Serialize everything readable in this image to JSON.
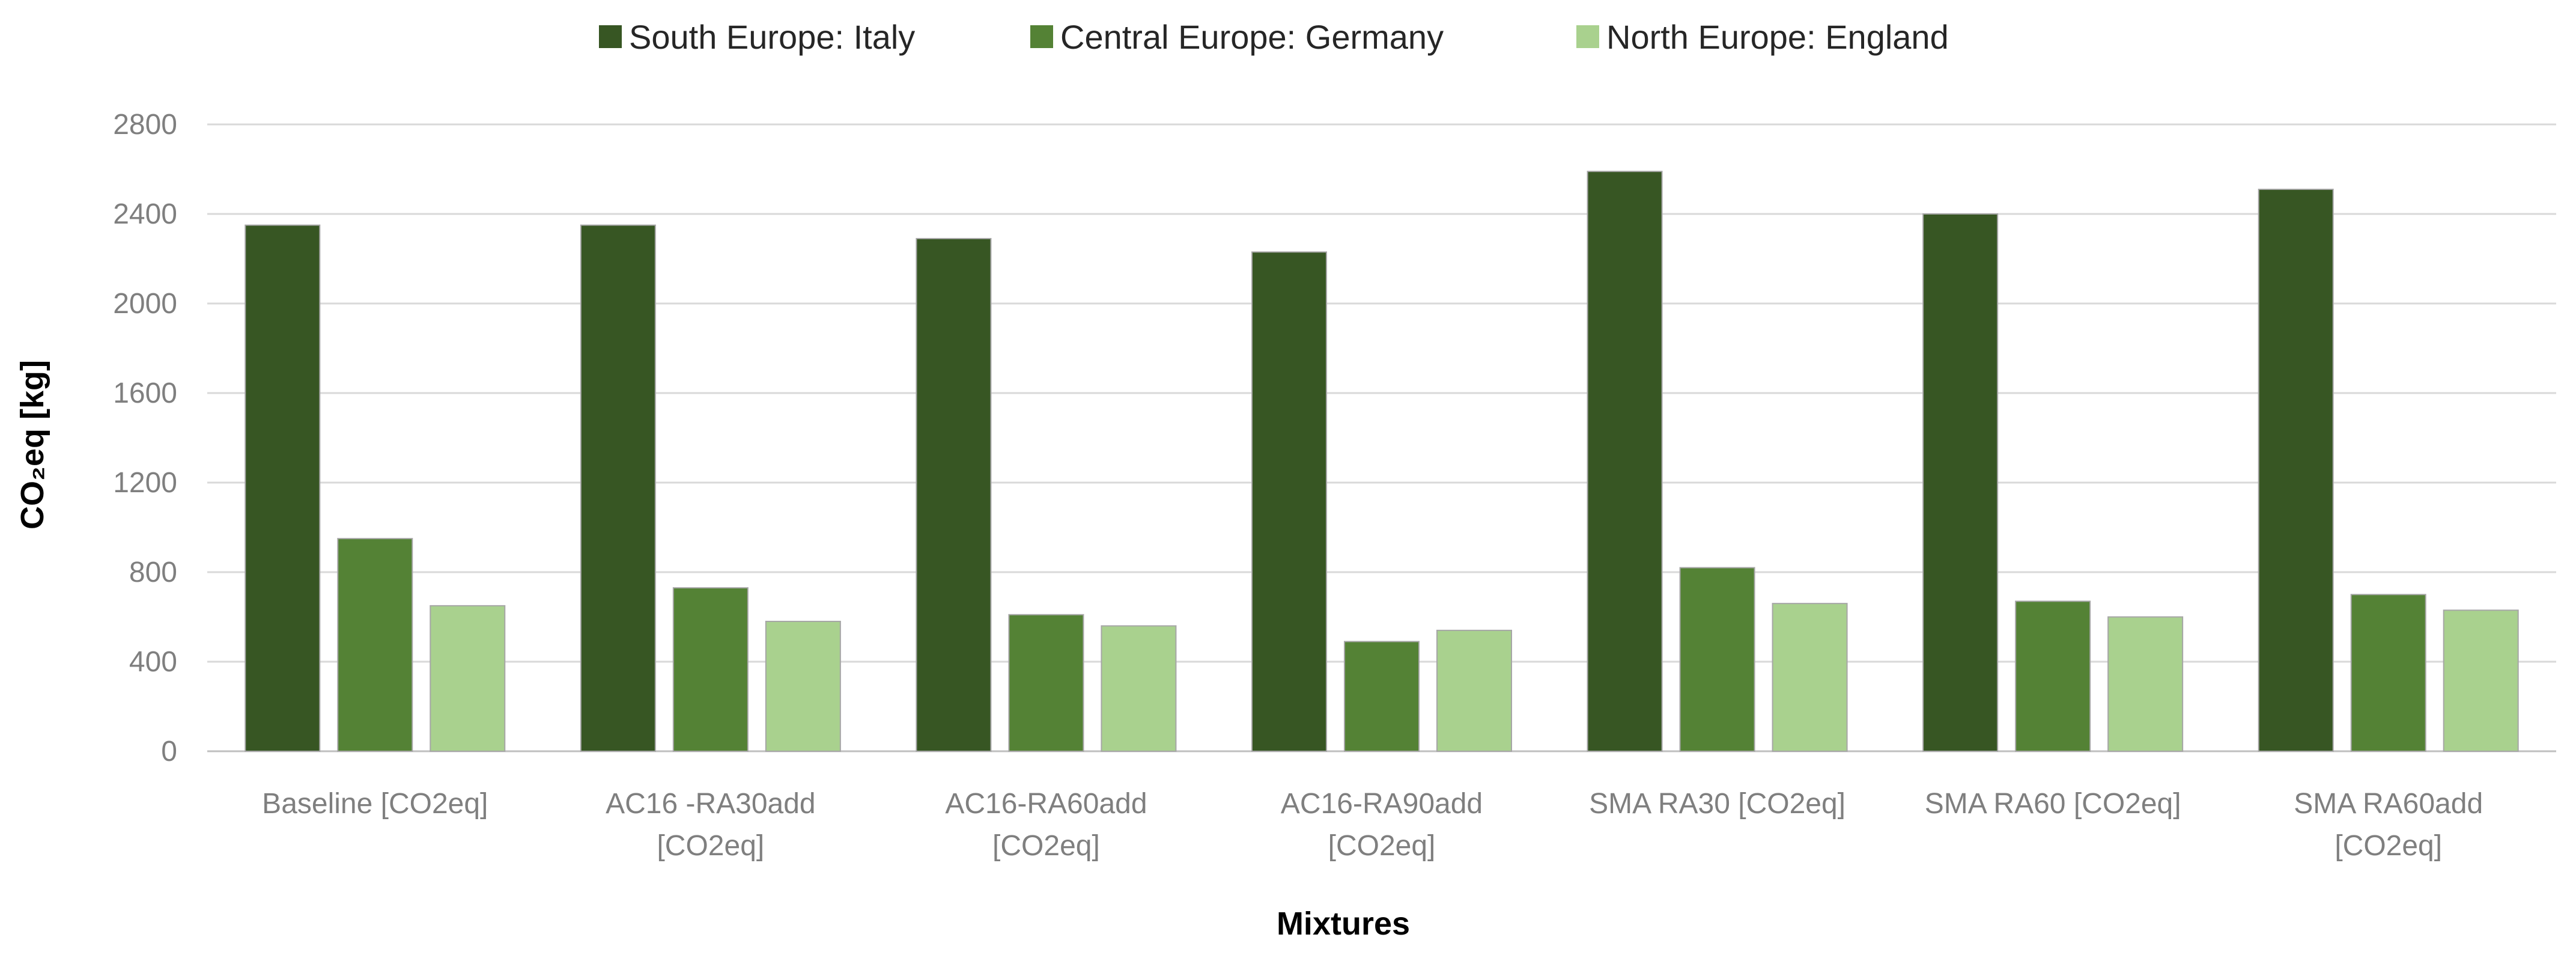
{
  "chart_data": {
    "type": "bar",
    "title": "",
    "xlabel": "Mixtures",
    "ylabel": "CO₂eq [kg]",
    "ylim": [
      0,
      2800
    ],
    "yticks": [
      "0",
      "400",
      "800",
      "1200",
      "1600",
      "2000",
      "2400",
      "2800"
    ],
    "grid": true,
    "legend_position": "top",
    "categories": [
      "Baseline [CO2eq]",
      "AC16 -RA30add [CO2eq]",
      "AC16-RA60add [CO2eq]",
      "AC16-RA90add [CO2eq]",
      "SMA RA30 [CO2eq]",
      "SMA RA60 [CO2eq]",
      "SMA RA60add [CO2eq]"
    ],
    "category_lines": [
      [
        "Baseline [CO2eq]"
      ],
      [
        "AC16 -RA30add",
        "[CO2eq]"
      ],
      [
        "AC16-RA60add",
        "[CO2eq]"
      ],
      [
        "AC16-RA90add",
        "[CO2eq]"
      ],
      [
        "SMA RA30 [CO2eq]"
      ],
      [
        "SMA RA60 [CO2eq]"
      ],
      [
        "SMA RA60add",
        "[CO2eq]"
      ]
    ],
    "series": [
      {
        "name": "South Europe: Italy",
        "color": "#375623",
        "values": [
          2350,
          2350,
          2290,
          2230,
          2590,
          2400,
          2510
        ]
      },
      {
        "name": "Central Europe: Germany",
        "color": "#548235",
        "values": [
          950,
          730,
          610,
          490,
          820,
          670,
          700
        ]
      },
      {
        "name": "North Europe: England",
        "color": "#a9d18e",
        "values": [
          650,
          580,
          560,
          540,
          660,
          600,
          630
        ]
      }
    ]
  }
}
